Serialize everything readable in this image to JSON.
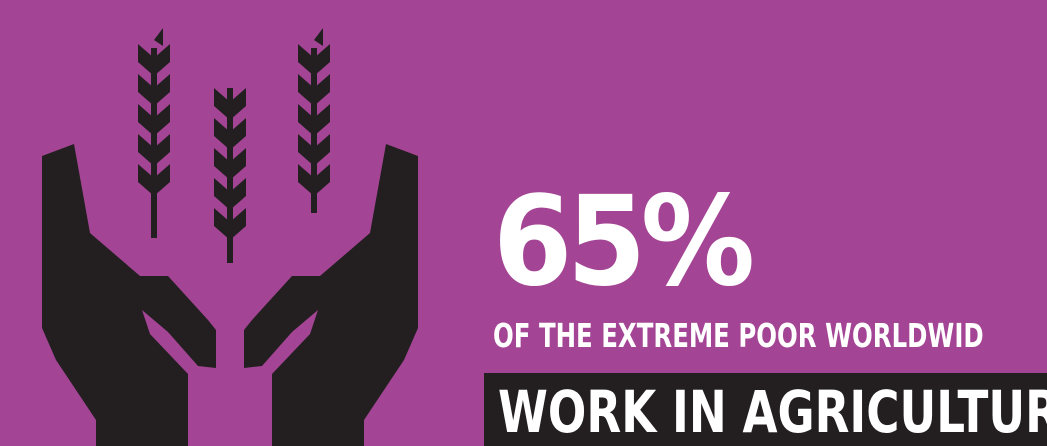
{
  "colors": {
    "background": "#a34594",
    "icon": "#231f20",
    "text": "#ffffff",
    "banner": "#231f20"
  },
  "illustration": {
    "icon_name": "hands-holding-wheat-icon"
  },
  "stat": {
    "value": "65%",
    "subtitle": "OF THE EXTREME POOR WORLDWID",
    "banner": "WORK IN AGRICULTURE"
  }
}
